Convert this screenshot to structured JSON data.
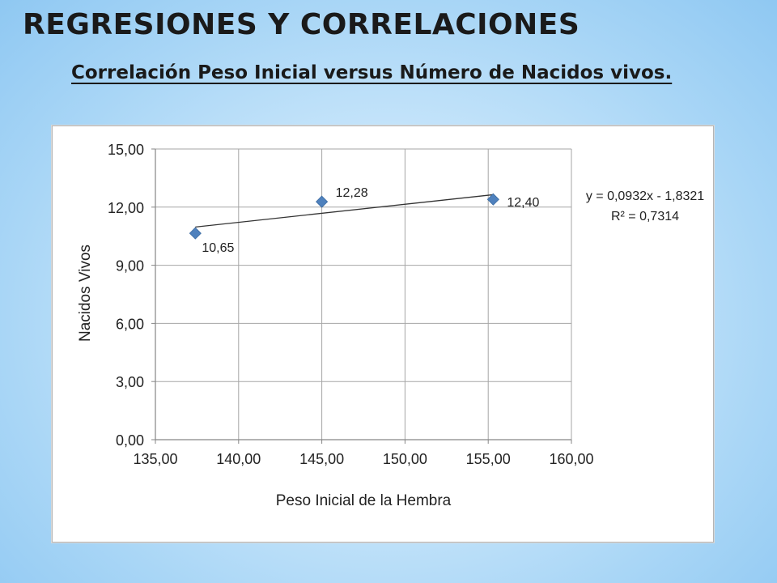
{
  "page": {
    "title": "REGRESIONES Y CORRELACIONES",
    "subtitle": "Correlación Peso Inicial versus Número de  Nacidos vivos."
  },
  "chart_data": {
    "type": "scatter",
    "xlabel": "Peso Inicial de la Hembra",
    "ylabel": "Nacidos Vivos",
    "xlim": [
      135,
      160
    ],
    "ylim": [
      0,
      15
    ],
    "x_ticks": [
      135,
      140,
      145,
      150,
      155,
      160
    ],
    "y_ticks": [
      0,
      3,
      6,
      9,
      12,
      15
    ],
    "x_tick_labels": [
      "135,00",
      "140,00",
      "145,00",
      "150,00",
      "155,00",
      "160,00"
    ],
    "y_tick_labels": [
      "0,00",
      "3,00",
      "6,00",
      "9,00",
      "12,00",
      "15,00"
    ],
    "grid": true,
    "legend": "none",
    "points": [
      {
        "x": 137.4,
        "y": 10.65,
        "label": "10,65"
      },
      {
        "x": 145.0,
        "y": 12.28,
        "label": "12,28"
      },
      {
        "x": 155.3,
        "y": 12.4,
        "label": "12,40"
      }
    ],
    "marker_color": "#4f81bd",
    "trendline": {
      "slope": 0.0932,
      "intercept": -1.8321,
      "x_range": [
        137.4,
        155.3
      ],
      "equation": "y = 0,0932x - 1,8321",
      "r_squared": "R² = 0,7314",
      "color": "#333333"
    }
  }
}
